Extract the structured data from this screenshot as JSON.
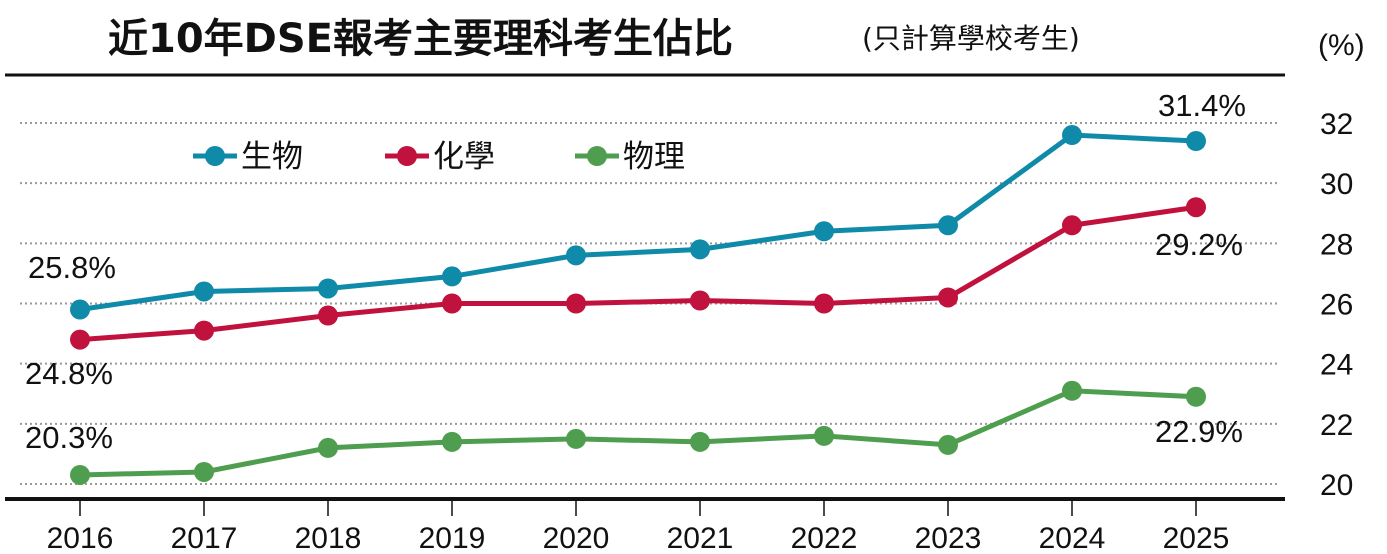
{
  "chart_data": {
    "type": "line",
    "title": "近10年DSE報考主要理科考生佔比",
    "subtitle": "(只計算學校考生)",
    "ylabel": "(%)",
    "xlabel": "",
    "categories": [
      "2016",
      "2017",
      "2018",
      "2019",
      "2020",
      "2021",
      "2022",
      "2023",
      "2024",
      "2025"
    ],
    "ylim": [
      20,
      32
    ],
    "yticks": [
      "20",
      "22",
      "24",
      "26",
      "28",
      "30",
      "32"
    ],
    "grid": true,
    "legend_position": "top-left",
    "series": [
      {
        "name": "生物",
        "color": "#0f8aa8",
        "values": [
          25.8,
          26.4,
          26.5,
          26.9,
          27.6,
          27.8,
          28.4,
          28.6,
          31.6,
          31.4
        ]
      },
      {
        "name": "化學",
        "color": "#c1113d",
        "values": [
          24.8,
          25.1,
          25.6,
          26.0,
          26.0,
          26.1,
          26.0,
          26.2,
          28.6,
          29.2
        ]
      },
      {
        "name": "物理",
        "color": "#4f9e4f",
        "values": [
          20.3,
          20.4,
          21.2,
          21.4,
          21.5,
          21.4,
          21.6,
          21.3,
          23.1,
          22.9
        ]
      }
    ],
    "annotations": [
      "25.8%",
      "24.8%",
      "20.3%",
      "31.4%",
      "29.2%",
      "22.9%"
    ]
  }
}
